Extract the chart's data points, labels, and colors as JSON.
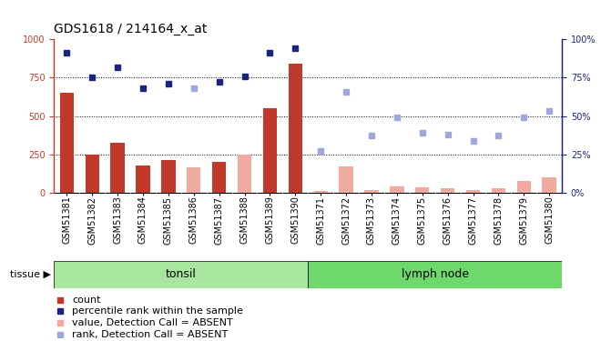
{
  "title": "GDS1618 / 214164_x_at",
  "samples": [
    "GSM51381",
    "GSM51382",
    "GSM51383",
    "GSM51384",
    "GSM51385",
    "GSM51386",
    "GSM51387",
    "GSM51388",
    "GSM51389",
    "GSM51390",
    "GSM51371",
    "GSM51372",
    "GSM51373",
    "GSM51374",
    "GSM51375",
    "GSM51376",
    "GSM51377",
    "GSM51378",
    "GSM51379",
    "GSM51380"
  ],
  "bar_values": [
    650,
    250,
    325,
    175,
    210,
    null,
    200,
    null,
    550,
    840,
    null,
    null,
    null,
    null,
    null,
    null,
    null,
    null,
    null,
    null
  ],
  "bar_absent_values": [
    null,
    null,
    null,
    null,
    null,
    165,
    null,
    250,
    null,
    null,
    10,
    170,
    15,
    40,
    35,
    30,
    20,
    30,
    75,
    100
  ],
  "rank_present": [
    91,
    75,
    82,
    68,
    71,
    null,
    72,
    76,
    91,
    94,
    null,
    null,
    null,
    null,
    null,
    null,
    null,
    null,
    null,
    null
  ],
  "rank_absent": [
    null,
    null,
    null,
    null,
    null,
    68,
    null,
    null,
    null,
    null,
    27,
    66,
    37,
    49,
    39,
    38,
    34,
    37,
    49,
    53
  ],
  "tonsil_count": 10,
  "ylim_left": [
    0,
    1000
  ],
  "ylim_right": [
    0,
    100
  ],
  "yticks_left": [
    0,
    250,
    500,
    750,
    1000
  ],
  "yticks_right": [
    0,
    25,
    50,
    75,
    100
  ],
  "bar_color_present": "#c0392b",
  "bar_color_absent": "#f1a9a0",
  "rank_color_present": "#1a237e",
  "rank_color_absent": "#9fa8da",
  "tonsil_color": "#a8e6a0",
  "lymph_color": "#6dd96d",
  "title_fontsize": 10,
  "tick_fontsize": 7,
  "legend_fontsize": 8
}
